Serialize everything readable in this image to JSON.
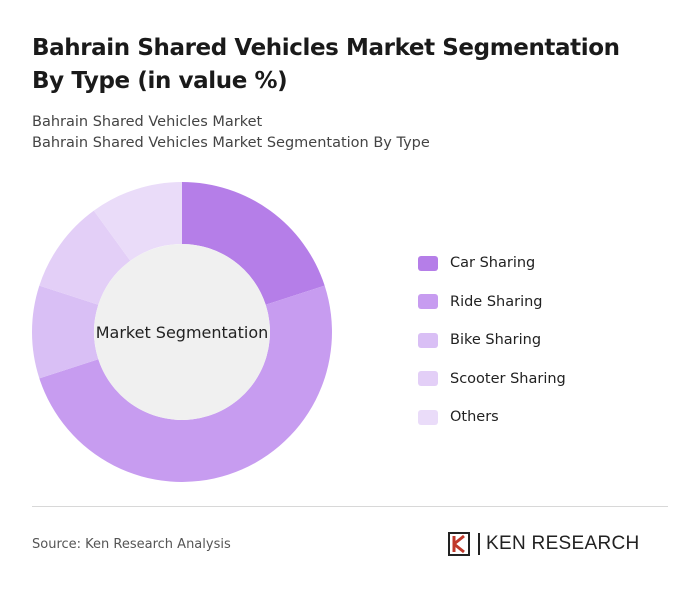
{
  "chart_data": {
    "type": "donut",
    "title": "Bahrain Shared Vehicles Market Segmentation By Type (in value %)",
    "subtitle": [
      "Bahrain Shared Vehicles Market",
      "Bahrain Shared Vehicles Market Segmentation By Type"
    ],
    "center_label": "Market Segmentation",
    "categories": [
      "Car Sharing",
      "Ride Sharing",
      "Bike Sharing",
      "Scooter Sharing",
      "Others"
    ],
    "values": [
      20,
      50,
      10,
      10,
      10
    ],
    "colors": [
      "#b57ee8",
      "#c79cf0",
      "#d9bff5",
      "#e3cff7",
      "#eadcf9"
    ],
    "source": "Source: Ken Research Analysis",
    "brand": "KEN RESEARCH"
  }
}
